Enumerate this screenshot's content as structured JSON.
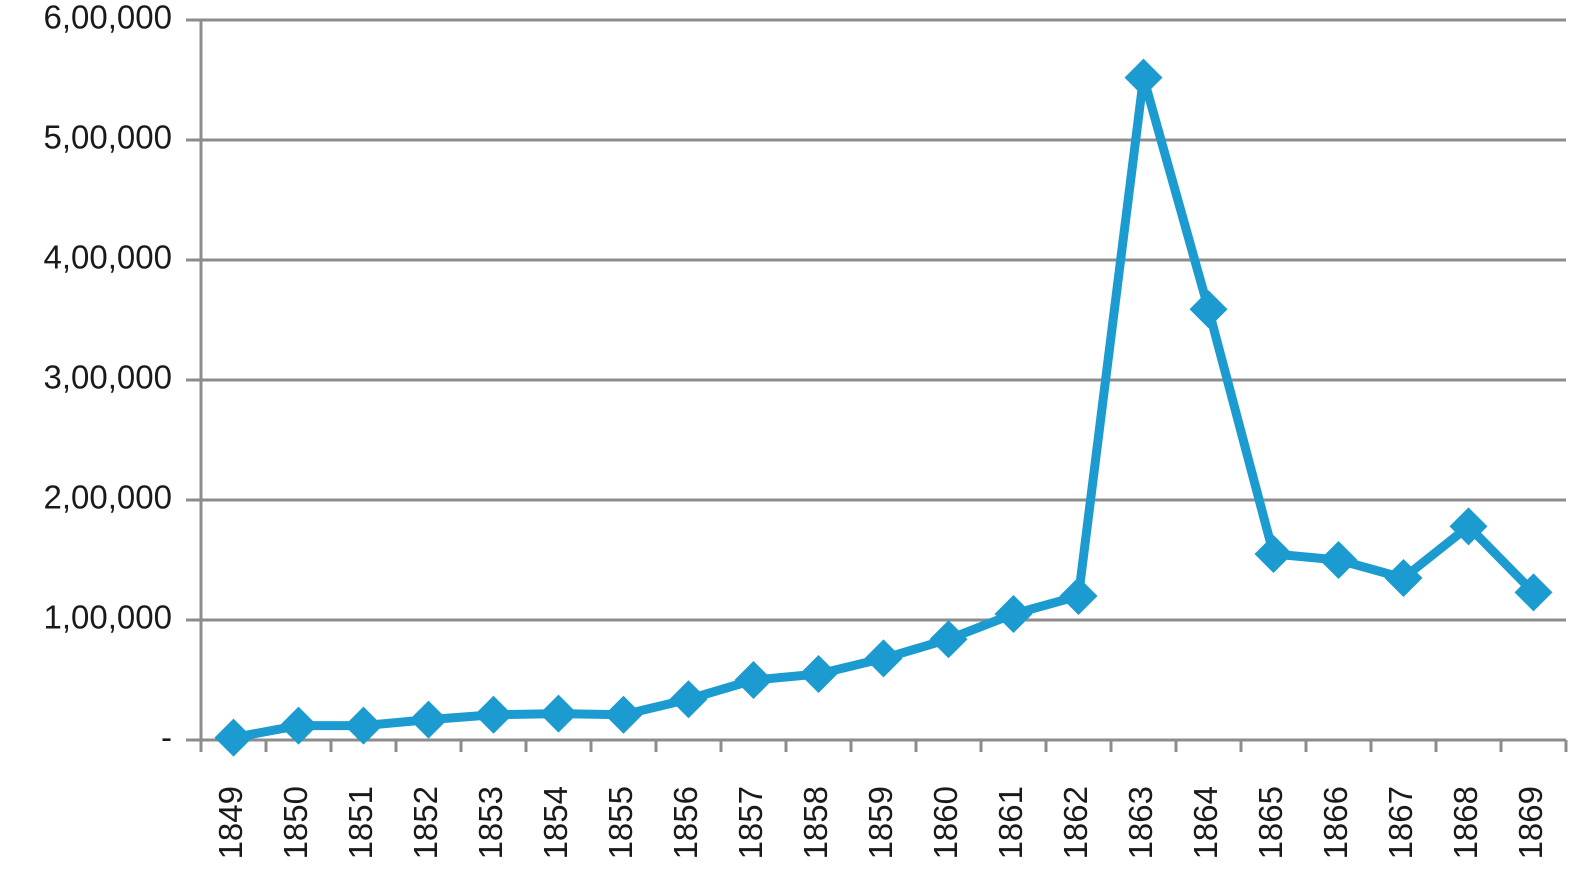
{
  "chart_data": {
    "type": "line",
    "title": "",
    "xlabel": "",
    "ylabel": "",
    "categories": [
      "1849",
      "1850",
      "1851",
      "1852",
      "1853",
      "1854",
      "1855",
      "1856",
      "1857",
      "1858",
      "1859",
      "1860",
      "1861",
      "1862",
      "1863",
      "1864",
      "1865",
      "1866",
      "1867",
      "1868",
      "1869"
    ],
    "series": [
      {
        "values": [
          2000,
          12000,
          12000,
          17000,
          21000,
          22000,
          21000,
          34000,
          50000,
          55000,
          68000,
          84000,
          105000,
          120000,
          552000,
          359000,
          155000,
          150000,
          135000,
          178000,
          123000
        ]
      }
    ],
    "ylim": [
      0,
      600000
    ],
    "yticks": [
      0,
      100000,
      200000,
      300000,
      400000,
      500000,
      600000
    ],
    "ytick_labels": [
      "-",
      "1,00,000",
      "2,00,000",
      "3,00,000",
      "4,00,000",
      "5,00,000",
      "6,00,000"
    ],
    "grid": true,
    "legend": "none",
    "colors": {
      "series": "#1b9bcf",
      "grid": "#8c8c8c",
      "text": "#1a1a1a"
    }
  }
}
